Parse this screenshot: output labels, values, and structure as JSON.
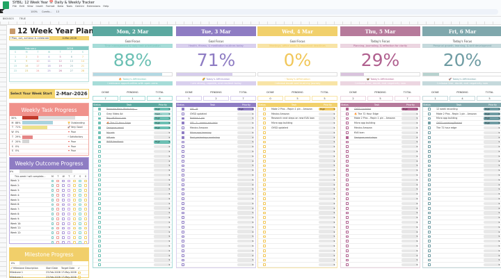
{
  "app": {
    "doc_title": "SYBIL: 12 Week Year 📅 Daily & Weekly Tracker",
    "menu": [
      "File",
      "Edit",
      "View",
      "Insert",
      "Format",
      "Data",
      "Tools",
      "Gemini",
      "Extensions",
      "Help"
    ],
    "namebox_tooltip": "Sheets home",
    "toolbar": {
      "zoom": "100%",
      "font": "Comfo...",
      "size": "13"
    },
    "cell_ref": "BN3:BO3",
    "formula": "TRUE"
  },
  "planner": {
    "title": "12 Week Year Planner",
    "tagline": "⚡Plan, act, achieve & celebrate",
    "date": "4-Mar-2026",
    "calendar": {
      "month": "February",
      "year": "2026",
      "weekdays": [
        "S",
        "M",
        "T",
        "W",
        "T",
        "F",
        "S"
      ],
      "weeks": [
        [
          "1",
          "2",
          "3",
          "4",
          "5",
          "6",
          "7"
        ],
        [
          "8",
          "9",
          "10",
          "11",
          "12",
          "13",
          "14"
        ],
        [
          "15",
          "16",
          "17",
          "18",
          "19",
          "20",
          "21"
        ],
        [
          "22",
          "23",
          "24",
          "25",
          "26",
          "27",
          "28"
        ],
        [
          "",
          "",
          "",
          "",
          "",
          "",
          ""
        ],
        [
          "",
          "",
          "",
          "",
          "",
          "",
          ""
        ]
      ]
    },
    "week_start_label": "Select Your Week Start",
    "week_start": "2-Mar-2026"
  },
  "weekly_task_progress": {
    "title": "Weekly Task Progress",
    "overall": "30%",
    "overall_fill": 30,
    "rows": [
      {
        "day": "M",
        "pct": "88%",
        "fill": 88,
        "color": "#a9d3de",
        "rating": "🏆 Outstanding"
      },
      {
        "day": "T",
        "pct": "71%",
        "fill": 71,
        "color": "#ece18a",
        "rating": "🚀 Very Good"
      },
      {
        "day": "W",
        "pct": "0%",
        "fill": 0,
        "color": "#ddd",
        "rating": "🔻 Poor"
      },
      {
        "day": "T",
        "pct": "29%",
        "fill": 29,
        "color": "#e58585",
        "rating": "⚡ Satisfactory"
      },
      {
        "day": "F",
        "pct": "20%",
        "fill": 20,
        "color": "#d5d5d5",
        "rating": "🔻 Poor"
      },
      {
        "day": "S",
        "pct": "0%",
        "fill": 0,
        "color": "#ddd",
        "rating": "🔻 Poor"
      },
      {
        "day": "S",
        "pct": "0%",
        "fill": 0,
        "color": "#ddd",
        "rating": "🔻 Poor"
      }
    ]
  },
  "weekly_outcome_progress": {
    "title": "Weekly Outcome Progress",
    "overall": "0%",
    "header": "This week I will complete...",
    "days": [
      "M",
      "T",
      "W",
      "T",
      "F",
      "S",
      "S"
    ],
    "weeks": [
      "Week 1:",
      "Week 2:",
      "Week 3:",
      "Week 4:",
      "Week 5:",
      "Week 6:",
      "Week 7:",
      "Week 8:",
      "Week 9:",
      "Week 10:",
      "Week 11:",
      "Week 12:",
      "",
      ""
    ],
    "check_colors": [
      "#7fc7c2",
      "#f09a94",
      "#a897d6",
      "#c7a6e6",
      "#f1d06b",
      "#7fd3d0",
      "#f1d06b"
    ]
  },
  "milestone_progress": {
    "title": "Milestone Progress",
    "overall": "0%",
    "columns": [
      "📝 Milestone Description",
      "Start Date",
      "Target Date",
      "✔"
    ],
    "rows": [
      [
        "Milestone 1",
        "23-Feb-2026",
        "17-May-2026"
      ],
      [
        "Milestone 2",
        "23-Feb-2026",
        "17-May-2026"
      ]
    ]
  },
  "days": [
    {
      "title": "Mon, 2 Mar",
      "color": "#5ba8a0",
      "accent": "#6cc0b4",
      "light": "#a6dcd8",
      "focus_label": "Goal Focus",
      "focus": "Time management & daily task prioritization",
      "percent": "88%",
      "fill": 88,
      "bar": "#b3d8e3",
      "affirmation_label": "🔥 Today's Affirmation",
      "affirmation": "I embrace opportunities with open arms",
      "done": "7",
      "pending": "1",
      "total": "8",
      "tasks": [
        {
          "text": "Promote Main Workshop —",
          "done": true,
          "priority": "High"
        },
        {
          "text": "Grey Video Ad",
          "done": false,
          "priority": "Medi..."
        },
        {
          "text": "Pay off Kiva Loan",
          "done": true,
          "priority": "High"
        },
        {
          "text": "🔥 The 72 Hour Edge",
          "done": true,
          "priority": "High"
        },
        {
          "text": "Designer email",
          "done": true,
          "priority": "High"
        },
        {
          "text": "My ads",
          "done": true,
          "priority": ""
        },
        {
          "text": "VIP ads",
          "done": true,
          "priority": ""
        },
        {
          "text": "WAM feedback",
          "done": true,
          "priority": "High"
        }
      ]
    },
    {
      "title": "Tue, 3 Mar",
      "color": "#8e7cc3",
      "accent": "#8e7cc3",
      "light": "#d9d0ee",
      "focus_label": "Goal Focus",
      "focus": "Health, fitness, & meditation routines today",
      "percent": "71%",
      "fill": 71,
      "bar": "#d6cdec",
      "affirmation_label": "🌈 Today's Affirmation",
      "affirmation": "I am strong, capable, and resilient today",
      "done": "5",
      "pending": "2",
      "total": "7",
      "tasks": [
        {
          "text": "VIP—M",
          "done": true,
          "priority": "High"
        },
        {
          "text": "GYSD updated",
          "done": false,
          "priority": ""
        },
        {
          "text": "Publish 1 pin",
          "done": true,
          "priority": ""
        },
        {
          "text": "VIP—3—weeks ads data",
          "done": true,
          "priority": ""
        },
        {
          "text": "Mexico Amazon",
          "done": false,
          "priority": ""
        },
        {
          "text": "Micro app learning",
          "done": true,
          "priority": ""
        },
        {
          "text": "Post yesterdays workshop",
          "done": true,
          "priority": ""
        }
      ]
    },
    {
      "title": "Wed, 4 Mar",
      "color": "#f1d06b",
      "accent": "#f1c75a",
      "light": "#f8e4a6",
      "focus_label": "Goal Focus",
      "focus": "Meetings, office work, & important deadlines",
      "percent": "0%",
      "fill": 0,
      "bar": "#f1d06b",
      "affirmation_label": "🕯 Today's Affirmation",
      "affirmation": "I release doubt and trust my journey",
      "done": "0",
      "pending": "5",
      "total": "5",
      "tasks": [
        {
          "text": "Make 2 Pins – Repin 1 pin – Amazon",
          "done": false,
          "priority": "High"
        },
        {
          "text": "Mexico Amazon",
          "done": false,
          "priority": ""
        },
        {
          "text": "Research next steps on new KVA loan",
          "done": false,
          "priority": ""
        },
        {
          "text": "Micro app building",
          "done": false,
          "priority": ""
        },
        {
          "text": "GYSD updated",
          "done": false,
          "priority": ""
        }
      ]
    },
    {
      "title": "Thu, 5 Mar",
      "color": "#b67a9b",
      "accent": "#b0608f",
      "light": "#ecd6e1",
      "focus_label": "Today's Focus",
      "focus": "Planning, journaling, & reflection for clarity",
      "percent": "29%",
      "fill": 29,
      "bar": "#d9c3dd",
      "affirmation_label": "🦋 Today's Affirmation",
      "affirmation": "I release fear, doubt, and negativity now",
      "done": "2",
      "pending": "5",
      "total": "7",
      "tasks": [
        {
          "text": "GYSD Updated",
          "done": true,
          "priority": "High"
        },
        {
          "text": "🔥 The 72 Hour Edge",
          "done": false,
          "priority": ""
        },
        {
          "text": "Make 2 Pins – Repin 1 pin – Amazon",
          "done": false,
          "priority": ""
        },
        {
          "text": "Micro app building",
          "done": false,
          "priority": ""
        },
        {
          "text": "Mexico Amazon",
          "done": false,
          "priority": ""
        },
        {
          "text": "KVA loan",
          "done": false,
          "priority": ""
        },
        {
          "text": "Designer next steps",
          "done": true,
          "priority": ""
        }
      ]
    },
    {
      "title": "Fri, 6 Mar",
      "color": "#7fa7ac",
      "accent": "#6f9ca3",
      "light": "#c5d9dc",
      "focus_label": "Today's Focus",
      "focus": "Personal growth, learning, & skill development",
      "percent": "20%",
      "fill": 20,
      "bar": "#b7d2cf",
      "affirmation_label": "🚀 Today's Affirmation",
      "affirmation": "I release fear, doubt, and negativity now",
      "done": "1",
      "pending": "4",
      "total": "5",
      "tasks": [
        {
          "text": "12 week recording",
          "done": false,
          "priority": "High"
        },
        {
          "text": "Make 2 Pins - Repin 1 pin - Amazon",
          "done": false,
          "priority": "High"
        },
        {
          "text": "Micro app building",
          "done": false,
          "priority": "High"
        },
        {
          "text": "GYSD updating/Posted",
          "done": true,
          "priority": "High"
        },
        {
          "text": "The 72 hour edge",
          "done": false,
          "priority": ""
        }
      ]
    }
  ],
  "labels": {
    "done": "DONE",
    "pending": "PENDING",
    "total": "TOTAL",
    "status": "Status",
    "task": "Task",
    "priority": "Priority"
  }
}
